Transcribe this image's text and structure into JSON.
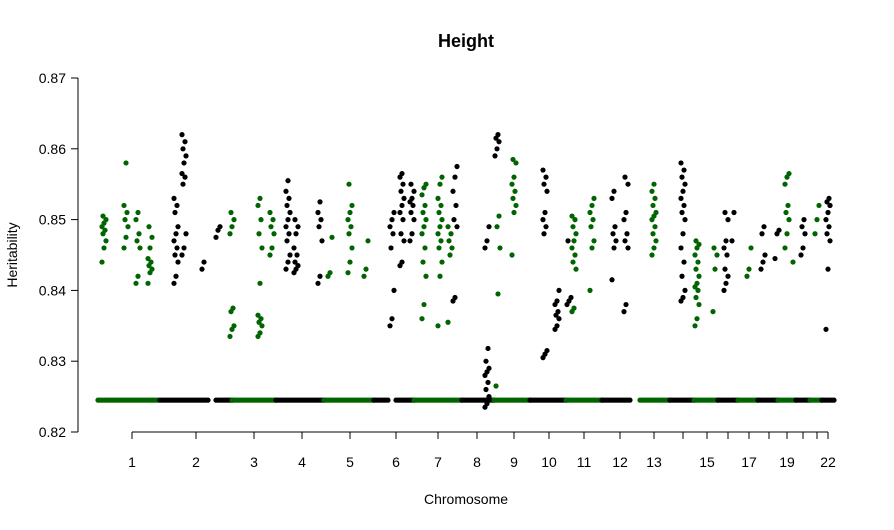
{
  "chart_data": {
    "type": "scatter",
    "title": "Height",
    "xlabel": "Chromosome",
    "ylabel": "Heritability",
    "ylim": [
      0.82,
      0.87
    ],
    "y_ticks": [
      0.82,
      0.83,
      0.84,
      0.85,
      0.86,
      0.87
    ],
    "y_tick_labels": [
      "0.82",
      "0.83",
      "0.84",
      "0.85",
      "0.86",
      "0.87"
    ],
    "x_tick_labels": [
      "1",
      "2",
      "3",
      "4",
      "5",
      "6",
      "7",
      "8",
      "9",
      "10",
      "11",
      "12",
      "13",
      "15",
      "17",
      "19",
      "22"
    ],
    "grid": false,
    "legend": "none",
    "colors": {
      "odd_chromosome": "#006400",
      "even_chromosome": "#000000"
    },
    "baseline_heritability": 0.8245,
    "series": [
      {
        "chromosome": "1",
        "clusters": [
          [
            0.844,
            0.846,
            0.847,
            0.848,
            0.8485,
            0.849,
            0.8495,
            0.85,
            0.8505
          ],
          [
            0.846,
            0.8475,
            0.849,
            0.85,
            0.851,
            0.852,
            0.858
          ],
          [
            0.841,
            0.842,
            0.846,
            0.847,
            0.848,
            0.85,
            0.851
          ],
          [
            0.841,
            0.8425,
            0.843,
            0.8435,
            0.844,
            0.8445,
            0.846,
            0.8475,
            0.849
          ]
        ]
      },
      {
        "chromosome": "2",
        "clusters": [
          [
            0.841,
            0.842,
            0.844,
            0.845,
            0.846,
            0.847,
            0.848,
            0.849,
            0.851,
            0.852,
            0.853
          ],
          [
            0.845,
            0.846,
            0.848,
            0.855,
            0.856,
            0.8565,
            0.858,
            0.859,
            0.86,
            0.861,
            0.862
          ],
          [
            0.843,
            0.844
          ],
          [
            0.8475,
            0.8485,
            0.849
          ]
        ]
      },
      {
        "chromosome": "3",
        "clusters": [
          [
            0.8335,
            0.8345,
            0.835,
            0.837,
            0.8375,
            0.848,
            0.849,
            0.85,
            0.851
          ],
          [
            0.8335,
            0.834,
            0.835,
            0.8355,
            0.836,
            0.8365,
            0.841,
            0.846,
            0.848,
            0.85,
            0.852,
            0.853
          ],
          [
            0.845,
            0.846,
            0.848,
            0.849,
            0.85,
            0.851
          ]
        ]
      },
      {
        "chromosome": "4",
        "clusters": [
          [
            0.843,
            0.844,
            0.845,
            0.847,
            0.848,
            0.849,
            0.85,
            0.851,
            0.852,
            0.853,
            0.854,
            0.8555
          ],
          [
            0.8425,
            0.843,
            0.8435,
            0.844,
            0.845,
            0.846,
            0.848,
            0.849,
            0.85
          ],
          [
            0.841,
            0.842,
            0.847,
            0.849,
            0.85,
            0.851,
            0.8525
          ]
        ]
      },
      {
        "chromosome": "5",
        "clusters": [
          [
            0.842,
            0.8425,
            0.8475
          ],
          [
            0.8425,
            0.844,
            0.846,
            0.848,
            0.849,
            0.85,
            0.851,
            0.852,
            0.855
          ],
          [
            0.842,
            0.843,
            0.847
          ]
        ]
      },
      {
        "chromosome": "6",
        "clusters": [
          [
            0.835,
            0.836,
            0.84,
            0.846,
            0.848,
            0.849,
            0.85,
            0.851
          ],
          [
            0.8435,
            0.844,
            0.847,
            0.848,
            0.85,
            0.851,
            0.852,
            0.853,
            0.854,
            0.855,
            0.856,
            0.8565
          ],
          [
            0.847,
            0.848,
            0.85,
            0.851,
            0.852,
            0.8525,
            0.853,
            0.854,
            0.855
          ]
        ]
      },
      {
        "chromosome": "7",
        "clusters": [
          [
            0.836,
            0.838,
            0.842,
            0.844,
            0.846,
            0.848,
            0.849,
            0.85,
            0.851,
            0.852,
            0.8535,
            0.8545,
            0.855
          ],
          [
            0.835,
            0.842,
            0.844,
            0.846,
            0.847,
            0.848,
            0.849,
            0.85,
            0.851,
            0.852,
            0.853,
            0.855,
            0.856
          ],
          [
            0.8355,
            0.845,
            0.846,
            0.847,
            0.848,
            0.849
          ]
        ]
      },
      {
        "chromosome": "8",
        "clusters": [
          [
            0.8385,
            0.839,
            0.849,
            0.85,
            0.852,
            0.854,
            0.856,
            0.8575
          ],
          [
            0.8235,
            0.824,
            0.825,
            0.826,
            0.827,
            0.828,
            0.8285,
            0.829,
            0.83,
            0.8318,
            0.846,
            0.847,
            0.849
          ],
          [
            0.859,
            0.86,
            0.861,
            0.8615,
            0.862
          ]
        ]
      },
      {
        "chromosome": "9",
        "clusters": [
          [
            0.8265,
            0.8395,
            0.846,
            0.849,
            0.8505
          ],
          [
            0.845,
            0.851,
            0.852,
            0.853,
            0.854,
            0.855,
            0.856,
            0.858,
            0.8585
          ]
        ]
      },
      {
        "chromosome": "10",
        "clusters": [
          [
            0.8305,
            0.831,
            0.8315,
            0.848,
            0.849,
            0.85,
            0.851,
            0.854,
            0.855,
            0.856,
            0.857
          ],
          [
            0.8345,
            0.835,
            0.836,
            0.8365,
            0.837,
            0.838,
            0.8385,
            0.84
          ],
          [
            0.838,
            0.8385,
            0.839,
            0.847
          ]
        ]
      },
      {
        "chromosome": "11",
        "clusters": [
          [
            0.837,
            0.8375,
            0.843,
            0.844,
            0.845,
            0.846,
            0.847,
            0.848,
            0.849,
            0.85,
            0.8505
          ],
          [
            0.84,
            0.846,
            0.847,
            0.849,
            0.85,
            0.851,
            0.852,
            0.853
          ]
        ]
      },
      {
        "chromosome": "12",
        "clusters": [
          [
            0.8415,
            0.846,
            0.847,
            0.848,
            0.849,
            0.853,
            0.854
          ],
          [
            0.837,
            0.838,
            0.846,
            0.847,
            0.848,
            0.85,
            0.851,
            0.855,
            0.856
          ]
        ]
      },
      {
        "chromosome": "13",
        "clusters": [
          [
            0.845,
            0.846,
            0.847,
            0.848,
            0.849,
            0.85,
            0.8505,
            0.851,
            0.852,
            0.853,
            0.854,
            0.855
          ]
        ]
      },
      {
        "chromosome": "14",
        "clusters": [
          [
            0.8385,
            0.839,
            0.84,
            0.842,
            0.844,
            0.846,
            0.848,
            0.85,
            0.851,
            0.852,
            0.853,
            0.854,
            0.855,
            0.856,
            0.857,
            0.858
          ]
        ]
      },
      {
        "chromosome": "15",
        "clusters": [
          [
            0.835,
            0.836,
            0.838,
            0.839,
            0.84,
            0.8405,
            0.841,
            0.842,
            0.843,
            0.844,
            0.845,
            0.846,
            0.8465,
            0.847
          ],
          [
            0.837,
            0.843,
            0.845,
            0.846
          ]
        ]
      },
      {
        "chromosome": "16",
        "clusters": [
          [
            0.84,
            0.841,
            0.842,
            0.843,
            0.845,
            0.846,
            0.847,
            0.85,
            0.851
          ],
          [
            0.847,
            0.851
          ]
        ]
      },
      {
        "chromosome": "17",
        "clusters": [
          [
            0.842,
            0.843,
            0.846
          ]
        ]
      },
      {
        "chromosome": "18",
        "clusters": [
          [
            0.843,
            0.844,
            0.845,
            0.848,
            0.849
          ],
          [
            0.8445,
            0.848,
            0.8485
          ]
        ]
      },
      {
        "chromosome": "19",
        "clusters": [
          [
            0.846,
            0.848,
            0.85,
            0.851,
            0.852,
            0.855,
            0.856,
            0.8565
          ],
          [
            0.844
          ]
        ]
      },
      {
        "chromosome": "20",
        "clusters": [
          [
            0.845,
            0.846,
            0.848,
            0.849,
            0.85
          ]
        ]
      },
      {
        "chromosome": "21",
        "clusters": [
          [
            0.848,
            0.85,
            0.852
          ]
        ]
      },
      {
        "chromosome": "22",
        "clusters": [
          [
            0.8345,
            0.843,
            0.847,
            0.848,
            0.849,
            0.85,
            0.851,
            0.852,
            0.8525,
            0.853
          ],
          [
            0.852
          ]
        ]
      }
    ]
  }
}
